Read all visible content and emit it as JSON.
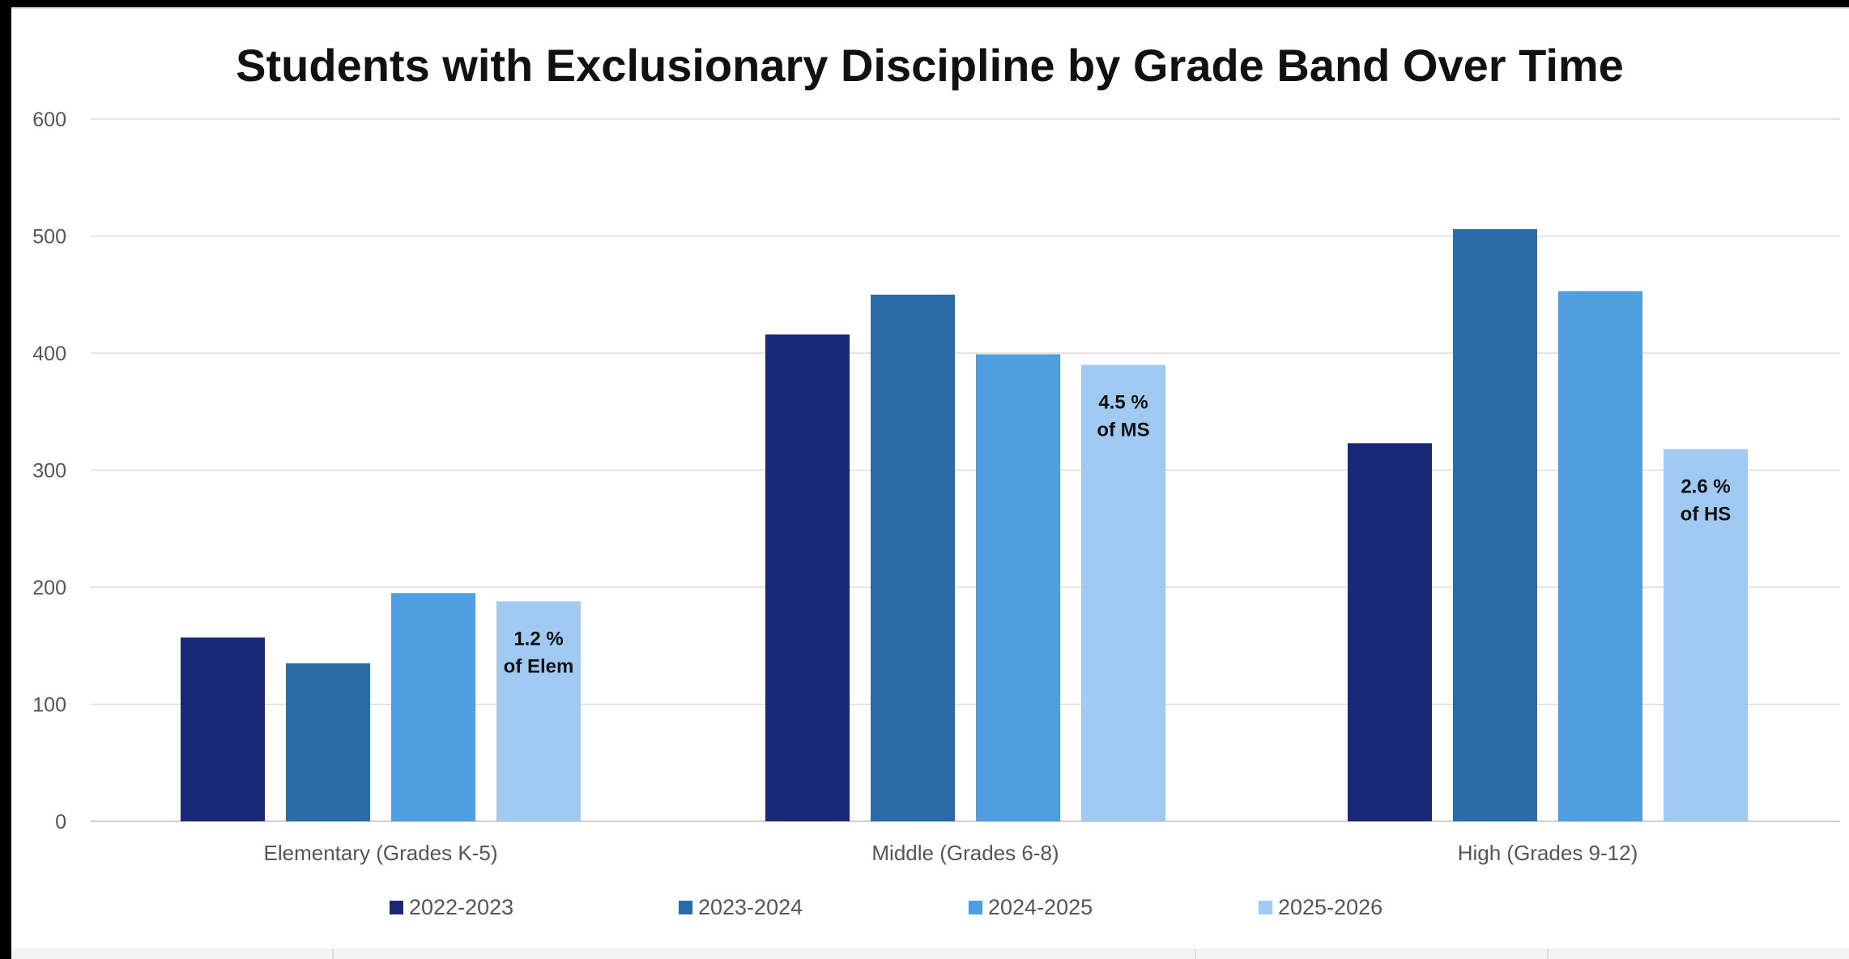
{
  "chart_data": {
    "type": "bar",
    "title": "Students with Exclusionary Discipline by Grade Band Over Time",
    "categories": [
      "Elementary (Grades K-5)",
      "Middle (Grades 6-8)",
      "High (Grades 9-12)"
    ],
    "series": [
      {
        "name": "2022-2023",
        "color": "#1a2878",
        "values": [
          157,
          416,
          323
        ]
      },
      {
        "name": "2023-2024",
        "color": "#2b6ca8",
        "values": [
          135,
          450,
          506
        ]
      },
      {
        "name": "2024-2025",
        "color": "#4f9fe0",
        "values": [
          195,
          399,
          453
        ]
      },
      {
        "name": "2025-2026",
        "color": "#a1caf2",
        "values": [
          188,
          390,
          318
        ]
      }
    ],
    "annotations": [
      {
        "category": "Elementary (Grades K-5)",
        "series": "2025-2026",
        "line1": "1.2 %",
        "line2": "of Elem"
      },
      {
        "category": "Middle (Grades 6-8)",
        "series": "2025-2026",
        "line1": "4.5 %",
        "line2": "of MS"
      },
      {
        "category": "High (Grades 9-12)",
        "series": "2025-2026",
        "line1": "2.6 %",
        "line2": "of HS"
      }
    ],
    "ylim": [
      0,
      600
    ],
    "yticks": [
      0,
      100,
      200,
      300,
      400,
      500,
      600
    ],
    "grid": true,
    "legend": "bottom",
    "xlabel": "",
    "ylabel": ""
  }
}
